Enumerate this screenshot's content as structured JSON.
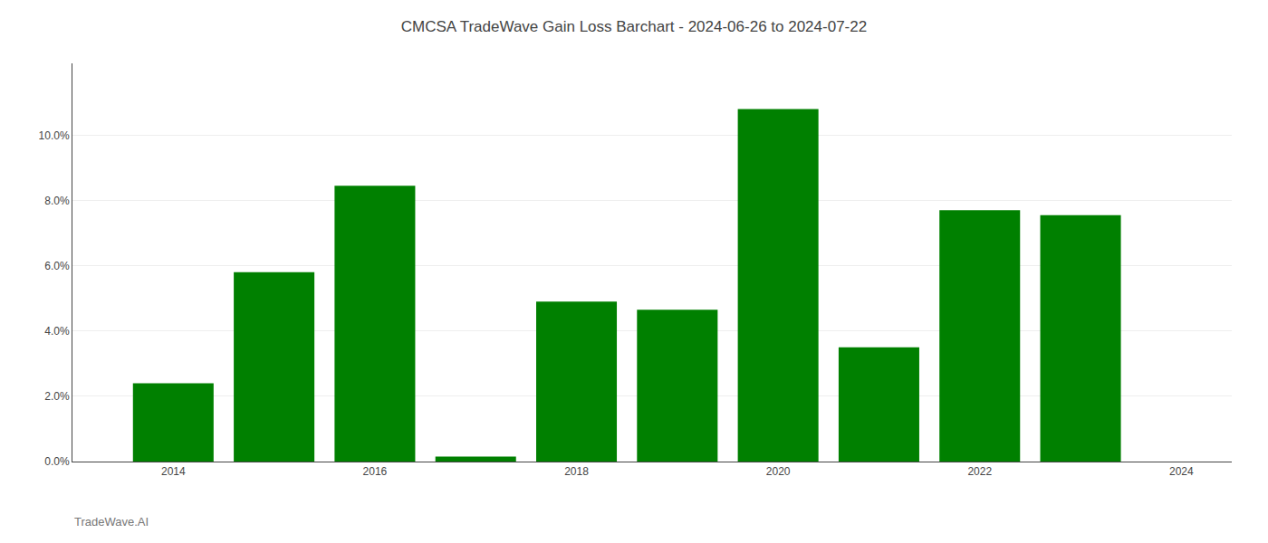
{
  "chart_data": {
    "type": "bar",
    "title": "CMCSA TradeWave Gain Loss Barchart - 2024-06-26 to 2024-07-22",
    "annotations": [
      "TradeWave.AI"
    ],
    "x": [
      2014,
      2015,
      2016,
      2017,
      2018,
      2019,
      2020,
      2021,
      2022,
      2023
    ],
    "values": [
      0.024,
      0.058,
      0.0845,
      0.0015,
      0.049,
      0.0465,
      0.108,
      0.035,
      0.077,
      0.0755
    ],
    "color": "#008000",
    "xlim": [
      2013.0,
      2024.5
    ],
    "xticks": [
      2014,
      2016,
      2018,
      2020,
      2022,
      2024
    ],
    "ylim": [
      0,
      0.122
    ],
    "yticks": [
      {
        "value": 0.0,
        "label": "0.0%"
      },
      {
        "value": 0.02,
        "label": "2.0%"
      },
      {
        "value": 0.04,
        "label": "4.0%"
      },
      {
        "value": 0.06,
        "label": "6.0%"
      },
      {
        "value": 0.08,
        "label": "8.0%"
      },
      {
        "value": 0.1,
        "label": "10.0%"
      }
    ],
    "grid": true
  }
}
